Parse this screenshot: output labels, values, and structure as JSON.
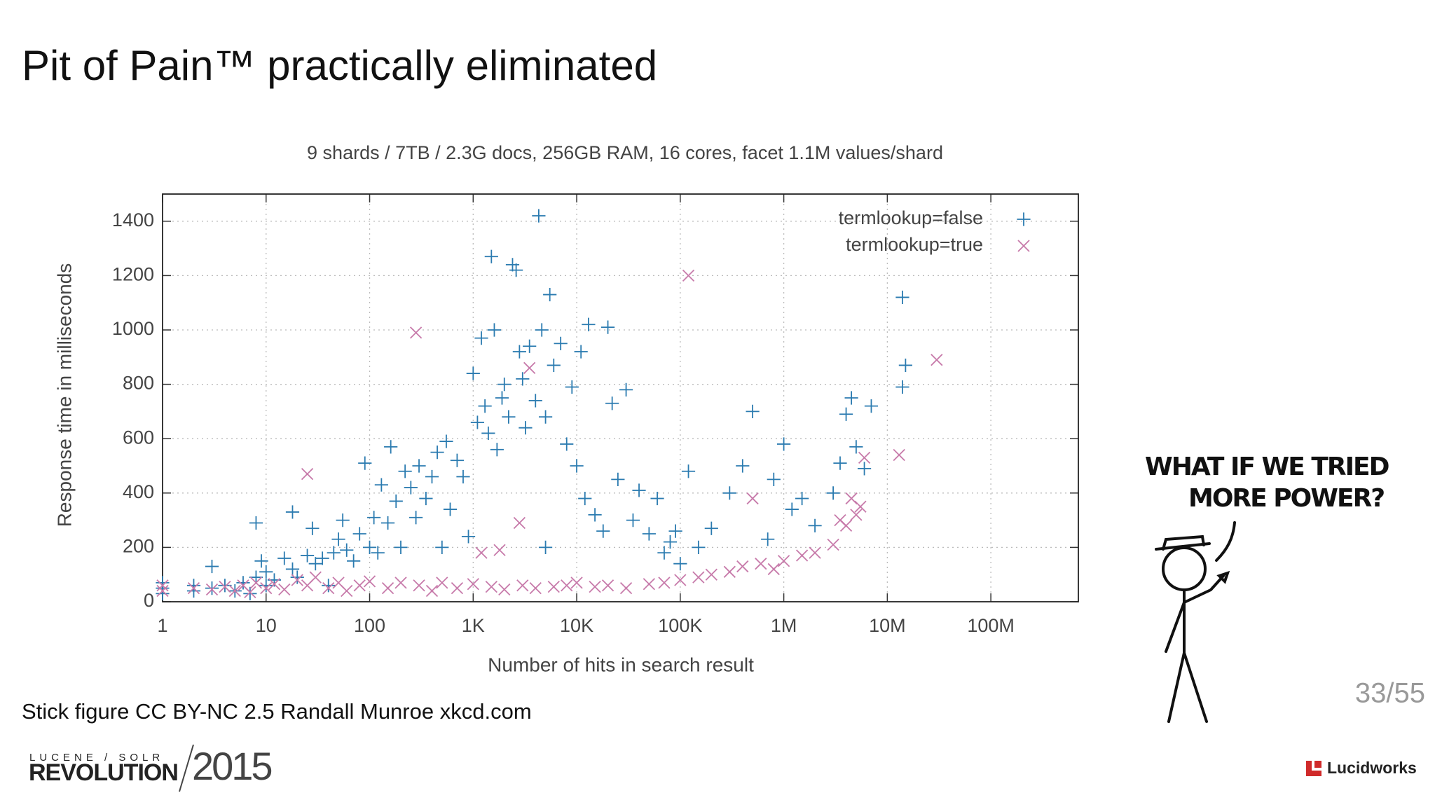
{
  "slide": {
    "title": "Pit of Pain™ practically eliminated",
    "caption": "Stick figure CC BY-NC 2.5 Randall Munroe xkcd.com",
    "page": "33/55",
    "comic_text": [
      "WHAT IF WE TRIED",
      "MORE POWER?"
    ],
    "event_logo": {
      "top": "LUCENE / SOLR",
      "name": "REVOLUTION",
      "year": "2015"
    },
    "company": "Lucidworks"
  },
  "chart_data": {
    "type": "scatter",
    "title": "9 shards / 7TB / 2.3G docs, 256GB RAM, 16 cores, facet 1.1M values/shard",
    "xlabel": "Number of hits in search result",
    "ylabel": "Response time in milliseconds",
    "xscale": "log",
    "xlim": [
      1,
      700000000
    ],
    "xticks": [
      1,
      10,
      100,
      {
        "value": 1000,
        "label": "1K"
      },
      {
        "value": 10000,
        "label": "10K"
      },
      {
        "value": 100000,
        "label": "100K"
      },
      {
        "value": 1000000,
        "label": "1M"
      },
      {
        "value": 10000000,
        "label": "10M"
      },
      {
        "value": 100000000,
        "label": "100M"
      }
    ],
    "ylim": [
      0,
      1500
    ],
    "yticks": [
      0,
      200,
      400,
      600,
      800,
      1000,
      1200,
      1400
    ],
    "grid": true,
    "legend": "upper right",
    "series": [
      {
        "name": "termlookup=false",
        "color": "#2b7bb0",
        "marker": "plus",
        "x": [
          1,
          1,
          1,
          2,
          2,
          3,
          3,
          4,
          5,
          6,
          7,
          8,
          9,
          10,
          10,
          12,
          15,
          18,
          20,
          25,
          30,
          35,
          40,
          8,
          18,
          28,
          45,
          50,
          55,
          60,
          70,
          80,
          90,
          100,
          110,
          120,
          130,
          150,
          160,
          180,
          200,
          220,
          250,
          280,
          300,
          350,
          400,
          450,
          500,
          550,
          600,
          700,
          800,
          900,
          1000,
          1100,
          1200,
          1300,
          1400,
          1500,
          1600,
          1700,
          1900,
          2000,
          2200,
          2400,
          2600,
          2800,
          3000,
          3200,
          3500,
          4000,
          4300,
          4600,
          5000,
          5500,
          5000,
          6000,
          7000,
          8000,
          9000,
          10000,
          11000,
          12000,
          13000,
          15000,
          18000,
          20000,
          22000,
          25000,
          30000,
          35000,
          40000,
          50000,
          60000,
          70000,
          80000,
          90000,
          100000,
          120000,
          150000,
          200000,
          300000,
          400000,
          500000,
          700000,
          800000,
          1000000,
          1200000,
          1500000,
          2000000,
          3000000,
          3500000,
          4000000,
          4500000,
          5000000,
          6000000,
          7000000,
          14000000,
          14000000,
          15000000
        ],
        "values": [
          50,
          30,
          70,
          40,
          60,
          50,
          130,
          60,
          40,
          70,
          30,
          90,
          150,
          60,
          110,
          80,
          160,
          120,
          90,
          170,
          140,
          160,
          60,
          290,
          330,
          270,
          180,
          230,
          300,
          190,
          150,
          250,
          510,
          200,
          310,
          180,
          430,
          290,
          570,
          370,
          200,
          480,
          420,
          310,
          500,
          380,
          460,
          550,
          200,
          590,
          340,
          520,
          460,
          240,
          840,
          660,
          970,
          720,
          620,
          1270,
          1000,
          560,
          750,
          800,
          680,
          1240,
          1220,
          920,
          820,
          640,
          940,
          740,
          1420,
          1000,
          680,
          1130,
          200,
          870,
          950,
          580,
          790,
          500,
          920,
          380,
          1020,
          320,
          260,
          1010,
          730,
          450,
          780,
          300,
          410,
          250,
          380,
          180,
          220,
          260,
          140,
          480,
          200,
          270,
          400,
          500,
          700,
          230,
          450,
          580,
          340,
          380,
          280,
          400,
          510,
          690,
          750,
          570,
          490,
          720,
          1120,
          790,
          870
        ]
      },
      {
        "name": "termlookup=true",
        "color": "#c77aaa",
        "marker": "cross",
        "x": [
          1,
          1,
          2,
          3,
          4,
          5,
          6,
          7,
          8,
          10,
          12,
          15,
          20,
          25,
          25,
          30,
          40,
          50,
          60,
          80,
          100,
          150,
          200,
          280,
          300,
          400,
          500,
          700,
          1000,
          1200,
          1500,
          1800,
          2000,
          2800,
          3000,
          3500,
          4000,
          6000,
          8000,
          10000,
          15000,
          20000,
          30000,
          50000,
          70000,
          100000,
          120000,
          150000,
          200000,
          300000,
          400000,
          500000,
          600000,
          800000,
          1000000,
          1500000,
          2000000,
          3000000,
          3500000,
          4000000,
          4500000,
          5000000,
          5500000,
          6000000,
          13000000,
          30000000
        ],
        "values": [
          40,
          60,
          50,
          45,
          55,
          40,
          60,
          35,
          70,
          50,
          65,
          45,
          80,
          470,
          60,
          90,
          50,
          70,
          40,
          60,
          75,
          50,
          70,
          990,
          60,
          40,
          70,
          50,
          65,
          180,
          55,
          190,
          45,
          290,
          60,
          860,
          50,
          55,
          60,
          70,
          55,
          60,
          50,
          65,
          70,
          80,
          1200,
          90,
          100,
          110,
          130,
          380,
          140,
          120,
          150,
          170,
          180,
          210,
          300,
          280,
          380,
          320,
          350,
          530,
          540,
          890
        ]
      }
    ]
  }
}
